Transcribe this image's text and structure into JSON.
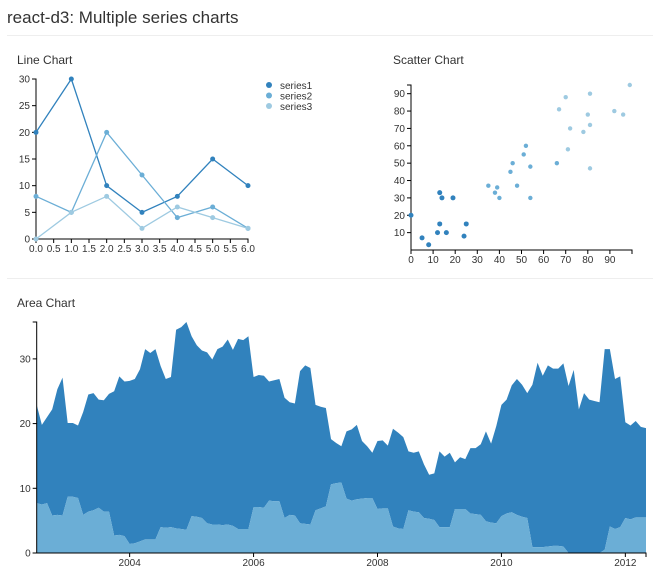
{
  "page": {
    "title": "react-d3: Multiple series charts"
  },
  "colors": {
    "series1": "#3182bd",
    "series2": "#6baed6",
    "series3": "#9ecae1"
  },
  "chart_data": [
    {
      "type": "line",
      "title": "Line Chart",
      "xlim": [
        0,
        6
      ],
      "ylim": [
        0,
        30
      ],
      "xticks": [
        "0.0",
        "0.5",
        "1.0",
        "1.5",
        "2.0",
        "2.5",
        "3.0",
        "3.5",
        "4.0",
        "4.5",
        "5.0",
        "5.5",
        "6.0"
      ],
      "yticks": [
        "0",
        "5",
        "10",
        "15",
        "20",
        "25",
        "30"
      ],
      "legend": "top-right",
      "x": [
        0,
        1,
        2,
        3,
        4,
        5,
        6
      ],
      "series": [
        {
          "name": "series1",
          "values": [
            20,
            30,
            10,
            5,
            8,
            15,
            10
          ]
        },
        {
          "name": "series2",
          "values": [
            8,
            5,
            20,
            12,
            4,
            6,
            2
          ]
        },
        {
          "name": "series3",
          "values": [
            0,
            5,
            8,
            2,
            6,
            4,
            2
          ]
        }
      ]
    },
    {
      "type": "scatter",
      "title": "Scatter Chart",
      "xlim": [
        0,
        100
      ],
      "ylim": [
        0,
        95
      ],
      "xticks": [
        "0",
        "10",
        "20",
        "30",
        "40",
        "50",
        "60",
        "70",
        "80",
        "90"
      ],
      "yticks": [
        "10",
        "20",
        "30",
        "40",
        "50",
        "60",
        "70",
        "80",
        "90"
      ],
      "series": [
        {
          "points": [
            [
              0,
              20
            ],
            [
              5,
              7
            ],
            [
              8,
              3
            ],
            [
              12,
              10
            ],
            [
              13,
              15
            ],
            [
              13,
              33
            ],
            [
              14,
              30
            ],
            [
              16,
              10
            ],
            [
              19,
              30
            ],
            [
              24,
              8
            ],
            [
              25,
              15
            ]
          ]
        },
        {
          "points": [
            [
              35,
              37
            ],
            [
              38,
              33
            ],
            [
              39,
              36
            ],
            [
              40,
              30
            ],
            [
              45,
              45
            ],
            [
              46,
              50
            ],
            [
              48,
              37
            ],
            [
              51,
              55
            ],
            [
              52,
              60
            ],
            [
              54,
              48
            ],
            [
              54,
              30
            ],
            [
              66,
              50
            ]
          ]
        },
        {
          "points": [
            [
              67,
              81
            ],
            [
              70,
              88
            ],
            [
              71,
              58
            ],
            [
              72,
              70
            ],
            [
              78,
              68
            ],
            [
              80,
              78
            ],
            [
              81,
              90
            ],
            [
              81,
              72
            ],
            [
              81,
              47
            ],
            [
              92,
              80
            ],
            [
              96,
              78
            ],
            [
              99,
              95
            ]
          ]
        }
      ]
    },
    {
      "type": "area",
      "title": "Area Chart",
      "stacked": true,
      "ylim": [
        0,
        35.7
      ],
      "xticks": [
        "2004",
        "2006",
        "2008",
        "2010",
        "2012"
      ],
      "yticks": [
        "0",
        "10",
        "20",
        "30"
      ],
      "dates": [
        "2002-07",
        "2002-08",
        "2002-09",
        "2002-10",
        "2002-11",
        "2002-12",
        "2003-01",
        "2003-02",
        "2003-03",
        "2003-04",
        "2003-05",
        "2003-06",
        "2003-07",
        "2003-08",
        "2003-09",
        "2003-10",
        "2003-11",
        "2003-12",
        "2004-01",
        "2004-02",
        "2004-03",
        "2004-04",
        "2004-05",
        "2004-06",
        "2004-07",
        "2004-08",
        "2004-09",
        "2004-10",
        "2004-11",
        "2004-12",
        "2005-01",
        "2005-02",
        "2005-03",
        "2005-04",
        "2005-05",
        "2005-06",
        "2005-07",
        "2005-08",
        "2005-09",
        "2005-10",
        "2005-11",
        "2005-12",
        "2006-01",
        "2006-02",
        "2006-03",
        "2006-04",
        "2006-05",
        "2006-06",
        "2006-07",
        "2006-08",
        "2006-09",
        "2006-10",
        "2006-11",
        "2006-12",
        "2007-01",
        "2007-02",
        "2007-03",
        "2007-04",
        "2007-05",
        "2007-06",
        "2007-07",
        "2007-08",
        "2007-09",
        "2007-10",
        "2007-11",
        "2007-12",
        "2008-01",
        "2008-02",
        "2008-03",
        "2008-04",
        "2008-05",
        "2008-06",
        "2008-07",
        "2008-08",
        "2008-09",
        "2008-10",
        "2008-11",
        "2008-12",
        "2009-01",
        "2009-02",
        "2009-03",
        "2009-04",
        "2009-05",
        "2009-06",
        "2009-07",
        "2009-08",
        "2009-09",
        "2009-10",
        "2009-11",
        "2009-12",
        "2010-01",
        "2010-02",
        "2010-03",
        "2010-04",
        "2010-05",
        "2010-06",
        "2010-07",
        "2010-08",
        "2010-09",
        "2010-10",
        "2010-11",
        "2010-12",
        "2011-01",
        "2011-02",
        "2011-03",
        "2011-04",
        "2011-05",
        "2011-06",
        "2011-07",
        "2011-08",
        "2011-09",
        "2011-10",
        "2011-11",
        "2011-12",
        "2012-01",
        "2012-02",
        "2012-03",
        "2012-04",
        "2012-05"
      ],
      "series": [
        {
          "values": [
            7.7,
            7.5,
            7.7,
            5.8,
            5.9,
            5.8,
            8.7,
            8.7,
            8.5,
            5.9,
            6.4,
            6.6,
            7,
            6.4,
            6.4,
            2.7,
            2.8,
            2.6,
            1.4,
            1.5,
            1.8,
            2.1,
            2.1,
            2.1,
            4,
            3.9,
            4,
            3.8,
            3.7,
            3.6,
            5.7,
            5.6,
            5.4,
            4.6,
            4.4,
            4.4,
            4.3,
            4.4,
            4.2,
            3.7,
            3.7,
            3.7,
            7.1,
            7.1,
            7,
            8.1,
            8,
            8,
            5.4,
            5.9,
            5.8,
            4.6,
            4.5,
            4.4,
            6.6,
            6.9,
            7.2,
            10.6,
            10.8,
            10.9,
            8.4,
            8.1,
            8.3,
            8.4,
            8.5,
            8.5,
            6.8,
            6.9,
            6.9,
            4.1,
            3.8,
            3.7,
            6.6,
            6.4,
            6.3,
            5.4,
            5.3,
            5.1,
            4,
            4,
            4,
            6.8,
            6.8,
            6.8,
            6.1,
            6,
            5.9,
            4.9,
            4.7,
            4.6,
            5.7,
            6.1,
            6.3,
            5.9,
            5.6,
            5.4,
            0.9,
            0.9,
            0.9,
            1,
            1.1,
            1.1,
            1,
            0,
            0,
            0,
            0,
            0,
            0,
            0,
            0.5,
            4.1,
            3.7,
            4,
            5.4,
            5.2,
            5.5,
            5.5,
            5.5
          ]
        },
        {
          "values": [
            15.2,
            12.3,
            13.3,
            16.4,
            19.4,
            21.3,
            11.4,
            11.4,
            11.2,
            15.9,
            18.1,
            18.1,
            16.7,
            17.2,
            18.2,
            22.3,
            24.5,
            23.9,
            25.2,
            25.4,
            26.6,
            29.4,
            28.8,
            29.4,
            24.9,
            23,
            23.2,
            30.7,
            31.2,
            32.1,
            27.8,
            26.5,
            25.9,
            26.4,
            25.5,
            27.1,
            27.6,
            28.6,
            27.2,
            29.4,
            29.2,
            29.8,
            20.1,
            20.4,
            20.4,
            18.4,
            18.7,
            18.9,
            18.6,
            17.4,
            17.3,
            23.5,
            24.5,
            24.2,
            16.3,
            15.7,
            15.2,
            7,
            6.2,
            5.6,
            10.4,
            11,
            11.5,
            8.9,
            8,
            7,
            10.5,
            10.5,
            9.7,
            15.1,
            14.8,
            14.2,
            9.1,
            9.1,
            9.4,
            8.3,
            6.8,
            7.2,
            11.7,
            10.9,
            11.5,
            7.2,
            8,
            7.7,
            10.1,
            10.2,
            10.9,
            13.9,
            12.2,
            15,
            17.2,
            17.6,
            19.6,
            21,
            20.4,
            19.3,
            25.1,
            28.5,
            26.5,
            28,
            27.4,
            27.4,
            28.3,
            25.8,
            28.3,
            22.2,
            24.7,
            23.7,
            23.5,
            23.3,
            31,
            27.4,
            23.2,
            23.3,
            14.8,
            14.5,
            14.9,
            14,
            13.8
          ]
        }
      ]
    }
  ]
}
